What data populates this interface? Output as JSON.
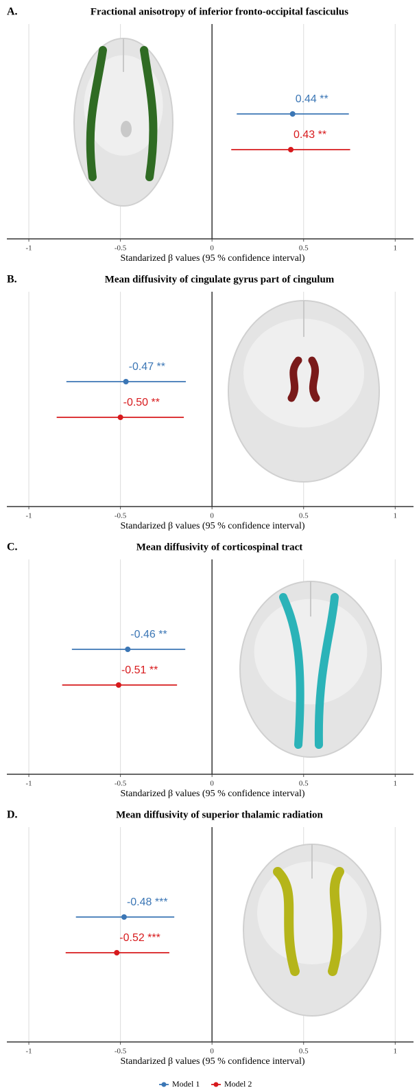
{
  "chart_data": [
    {
      "type": "forest",
      "label": "A.",
      "title": "Fractional anisotropy of inferior fronto-occipital fasciculus",
      "xlabel": "Standarized β values (95 % confidence interval)",
      "xlim": [
        -1.12,
        1.1
      ],
      "xticks": [
        -1,
        -0.5,
        0,
        0.5,
        1
      ],
      "grid": true,
      "series": [
        {
          "color": "#3b76b5",
          "values": [
            0.44
          ],
          "ci_low": [
            0.135
          ],
          "ci_high": [
            0.747
          ],
          "value_labels": [
            "0.44 **"
          ]
        },
        {
          "color": "#d7191c",
          "values": [
            0.43
          ],
          "ci_low": [
            0.105
          ],
          "ci_high": [
            0.754
          ],
          "value_labels": [
            "0.43 **"
          ]
        }
      ]
    },
    {
      "type": "forest",
      "label": "B.",
      "title": "Mean diffusivity of cingulate gyrus part of cingulum",
      "xlabel": "Standarized β values (95 % confidence interval)",
      "xlim": [
        -1.12,
        1.1
      ],
      "xticks": [
        -1,
        -0.5,
        0,
        0.5,
        1
      ],
      "grid": true,
      "series": [
        {
          "color": "#3b76b5",
          "values": [
            -0.47
          ],
          "ci_low": [
            -0.795
          ],
          "ci_high": [
            -0.143
          ],
          "value_labels": [
            "-0.47 **"
          ]
        },
        {
          "color": "#d7191c",
          "values": [
            -0.5
          ],
          "ci_low": [
            -0.848
          ],
          "ci_high": [
            -0.154
          ],
          "value_labels": [
            "-0.50 **"
          ]
        }
      ]
    },
    {
      "type": "forest",
      "label": "C.",
      "title": "Mean diffusivity of corticospinal tract",
      "xlabel": "Standarized β values (95 % confidence interval)",
      "xlim": [
        -1.12,
        1.1
      ],
      "xticks": [
        -1,
        -0.5,
        0,
        0.5,
        1
      ],
      "grid": true,
      "series": [
        {
          "color": "#3b76b5",
          "values": [
            -0.46
          ],
          "ci_low": [
            -0.765
          ],
          "ci_high": [
            -0.146
          ],
          "value_labels": [
            "-0.46 **"
          ]
        },
        {
          "color": "#d7191c",
          "values": [
            -0.51
          ],
          "ci_low": [
            -0.818
          ],
          "ci_high": [
            -0.191
          ],
          "value_labels": [
            "-0.51 **"
          ]
        }
      ]
    },
    {
      "type": "forest",
      "label": "D.",
      "title": "Mean diffusivity of superior thalamic radiation",
      "xlabel": "Standarized β values (95 % confidence interval)",
      "xlim": [
        -1.12,
        1.1
      ],
      "xticks": [
        -1,
        -0.5,
        0,
        0.5,
        1
      ],
      "grid": true,
      "series": [
        {
          "color": "#3b76b5",
          "values": [
            -0.48
          ],
          "ci_low": [
            -0.743
          ],
          "ci_high": [
            -0.206
          ],
          "value_labels": [
            "-0.48 ***"
          ]
        },
        {
          "color": "#d7191c",
          "values": [
            -0.52
          ],
          "ci_low": [
            -0.799
          ],
          "ci_high": [
            -0.233
          ],
          "value_labels": [
            "-0.52 ***"
          ]
        }
      ]
    }
  ],
  "legend": {
    "position": "bottom",
    "items": [
      {
        "name": "Model 1",
        "color": "#3b76b5"
      },
      {
        "name": "Model 2",
        "color": "#d7191c"
      }
    ]
  }
}
